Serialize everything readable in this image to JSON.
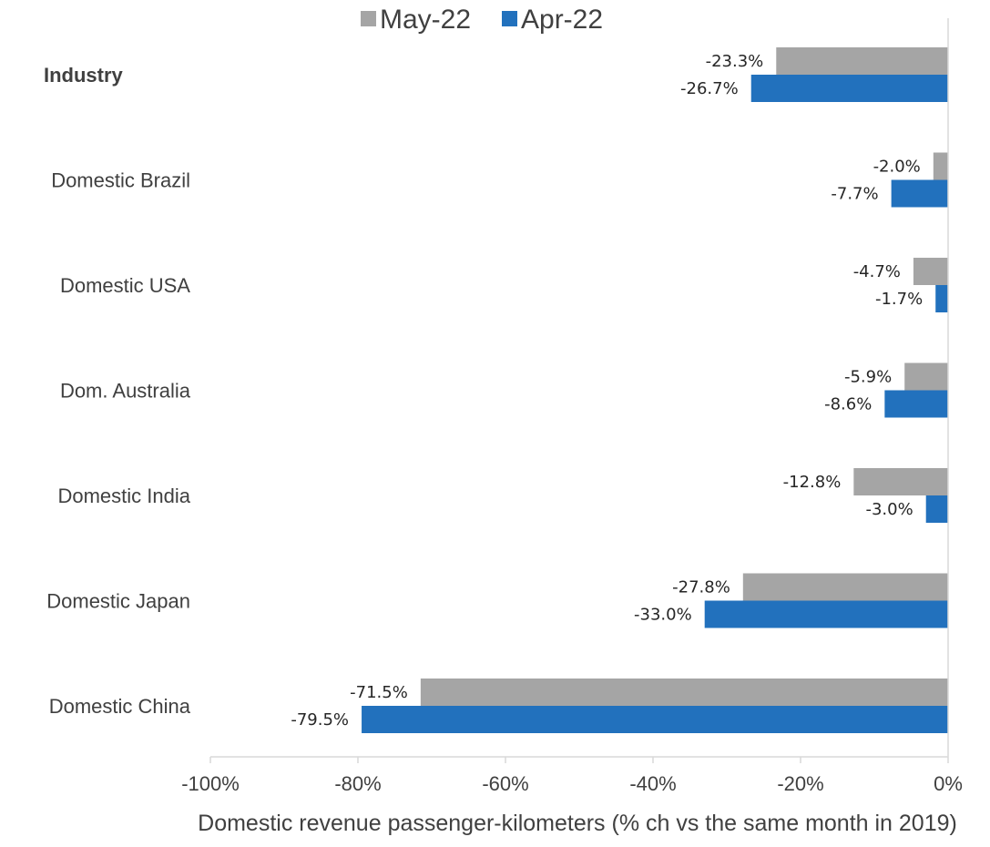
{
  "chart_data": {
    "type": "bar",
    "orientation": "horizontal",
    "categories": [
      "Industry",
      "Domestic Brazil",
      "Domestic USA",
      "Dom. Australia",
      "Domestic India",
      "Domestic Japan",
      "Domestic China"
    ],
    "category_bold": [
      true,
      false,
      false,
      false,
      false,
      false,
      false
    ],
    "series": [
      {
        "name": "May-22",
        "color": "#a5a5a5",
        "values": [
          -23.3,
          -2.0,
          -4.7,
          -5.9,
          -12.8,
          -27.8,
          -71.5
        ],
        "labels": [
          "-23.3%",
          "-2.0%",
          "-4.7%",
          "-5.9%",
          "-12.8%",
          "-27.8%",
          "-71.5%"
        ]
      },
      {
        "name": "Apr-22",
        "color": "#2271bd",
        "values": [
          -26.7,
          -7.7,
          -1.7,
          -8.6,
          -3.0,
          -33.0,
          -79.5
        ],
        "labels": [
          "-26.7%",
          "-7.7%",
          "-1.7%",
          "-8.6%",
          "-3.0%",
          "-33.0%",
          "-79.5%"
        ]
      }
    ],
    "xlim": [
      -100,
      0
    ],
    "xticks": [
      -100,
      -80,
      -60,
      -40,
      -20,
      0
    ],
    "xtick_labels": [
      "-100%",
      "-80%",
      "-60%",
      "-40%",
      "-20%",
      "0%"
    ],
    "xlabel": "Domestic revenue passenger-kilometers (% ch vs the same month in 2019)",
    "ylabel": "",
    "title": "",
    "grid": false,
    "legend_position": "top"
  }
}
